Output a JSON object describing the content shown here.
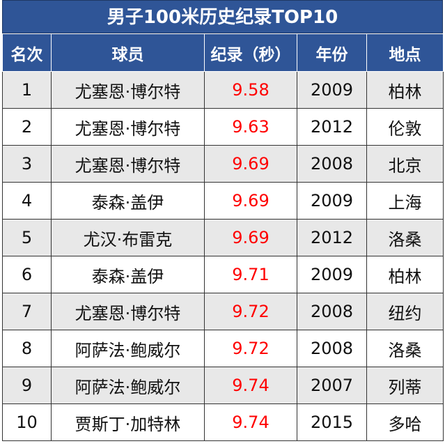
{
  "title": "男子100米历史纪录TOP10",
  "headers": [
    "名次",
    "球员",
    "纪录（秒）",
    "年份",
    "地点"
  ],
  "colors": {
    "header_bg": "#2f5597",
    "record_text": "#ff0000",
    "row_alt": "#e8e8e8"
  },
  "rows": [
    {
      "rank": "1",
      "player": "尤塞恩·博尔特",
      "record": "9.58",
      "year": "2009",
      "place": "柏林"
    },
    {
      "rank": "2",
      "player": "尤塞恩·博尔特",
      "record": "9.63",
      "year": "2012",
      "place": "伦敦"
    },
    {
      "rank": "3",
      "player": "尤塞恩·博尔特",
      "record": "9.69",
      "year": "2008",
      "place": "北京"
    },
    {
      "rank": "4",
      "player": "泰森·盖伊",
      "record": "9.69",
      "year": "2009",
      "place": "上海"
    },
    {
      "rank": "5",
      "player": "尤汉·布雷克",
      "record": "9.69",
      "year": "2012",
      "place": "洛桑"
    },
    {
      "rank": "6",
      "player": "泰森·盖伊",
      "record": "9.71",
      "year": "2009",
      "place": "柏林"
    },
    {
      "rank": "7",
      "player": "尤塞恩·博尔特",
      "record": "9.72",
      "year": "2008",
      "place": "纽约"
    },
    {
      "rank": "8",
      "player": "阿萨法·鲍威尔",
      "record": "9.72",
      "year": "2008",
      "place": "洛桑"
    },
    {
      "rank": "9",
      "player": "阿萨法·鲍威尔",
      "record": "9.74",
      "year": "2007",
      "place": "列蒂"
    },
    {
      "rank": "10",
      "player": "贾斯丁·加特林",
      "record": "9.74",
      "year": "2015",
      "place": "多哈"
    }
  ]
}
